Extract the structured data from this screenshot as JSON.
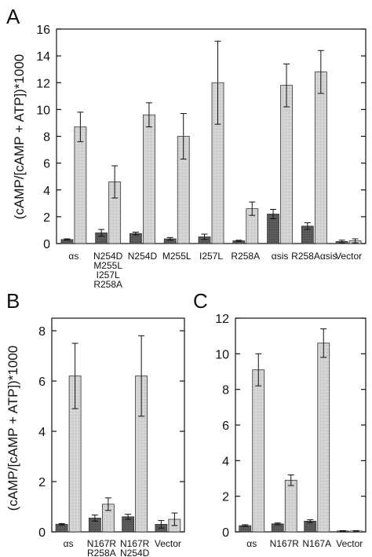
{
  "ylabel": "(cAMP/[cAMP + ATP])*1000",
  "panels": {
    "A": {
      "letter": "A"
    },
    "B": {
      "letter": "B"
    },
    "C": {
      "letter": "C"
    }
  },
  "colors": {
    "dark_bar": "#5a5a5a",
    "light_bar": "#d4d4d4",
    "frame": "#111111"
  },
  "chart_data": [
    {
      "panel": "A",
      "type": "bar",
      "categories": [
        [
          "αs"
        ],
        [
          "N254D",
          "M255L",
          "I257L",
          "R258A"
        ],
        [
          "N254D"
        ],
        [
          "M255L"
        ],
        [
          "I257L"
        ],
        [
          "R258A"
        ],
        [
          "αsis"
        ],
        [
          "R258Aαsis"
        ],
        [
          "Vector"
        ]
      ],
      "ylabel": "(cAMP/[cAMP + ATP])*1000",
      "ylim": [
        0,
        16
      ],
      "yticks": [
        0,
        2,
        4,
        6,
        8,
        10,
        12,
        14,
        16
      ],
      "series": [
        {
          "values": [
            0.3,
            0.8,
            0.75,
            0.35,
            0.5,
            0.2,
            2.2,
            1.3,
            0.15
          ],
          "errors": [
            0.05,
            0.25,
            0.1,
            0.1,
            0.2,
            0.05,
            0.35,
            0.25,
            0.1
          ]
        },
        {
          "values": [
            8.7,
            4.6,
            9.6,
            8.0,
            12.0,
            2.6,
            11.8,
            12.8,
            0.2
          ],
          "errors": [
            1.1,
            1.2,
            0.9,
            1.7,
            3.1,
            0.5,
            1.6,
            1.6,
            0.15
          ]
        }
      ]
    },
    {
      "panel": "B",
      "type": "bar",
      "categories": [
        [
          "αs"
        ],
        [
          "N167R",
          "R258A"
        ],
        [
          "N167R",
          "N254D"
        ],
        [
          "Vector"
        ]
      ],
      "ylabel": "(cAMP/[cAMP + ATP])*1000",
      "ylim": [
        0,
        8.5
      ],
      "yticks": [
        0,
        2,
        4,
        6,
        8
      ],
      "series": [
        {
          "values": [
            0.3,
            0.55,
            0.6,
            0.3
          ],
          "errors": [
            0.03,
            0.12,
            0.1,
            0.15
          ]
        },
        {
          "values": [
            6.2,
            1.1,
            6.2,
            0.5
          ],
          "errors": [
            1.3,
            0.25,
            1.6,
            0.25
          ]
        }
      ]
    },
    {
      "panel": "C",
      "type": "bar",
      "categories": [
        [
          "αs"
        ],
        [
          "N167R"
        ],
        [
          "N167A"
        ],
        [
          "Vector"
        ]
      ],
      "ylim": [
        0,
        12
      ],
      "yticks": [
        0,
        2,
        4,
        6,
        8,
        10,
        12
      ],
      "series": [
        {
          "values": [
            0.35,
            0.45,
            0.6,
            0.05
          ],
          "errors": [
            0.05,
            0.05,
            0.08,
            0.02
          ]
        },
        {
          "values": [
            9.1,
            2.9,
            10.6,
            0.05
          ],
          "errors": [
            0.9,
            0.3,
            0.8,
            0.02
          ]
        }
      ]
    }
  ]
}
